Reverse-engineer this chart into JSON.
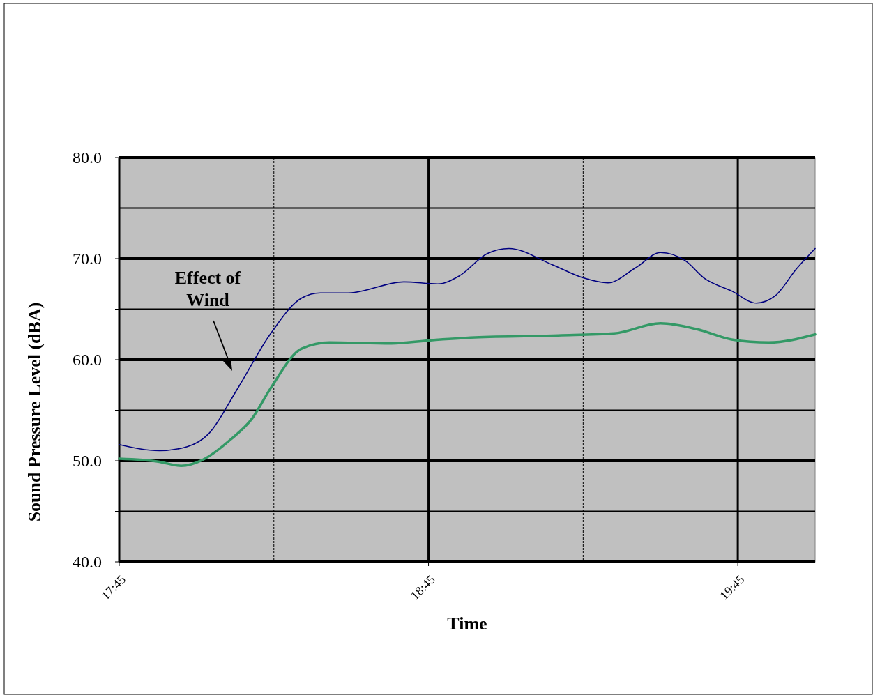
{
  "chart_data": {
    "type": "line",
    "xlabel": "Time",
    "ylabel": "Sound Pressure Level (dBA)",
    "xlim": [
      17.75,
      20.0
    ],
    "xticks": [
      {
        "value": 17.75,
        "label": "17:45"
      },
      {
        "value": 18.25,
        "label": null
      },
      {
        "value": 18.75,
        "label": "18:45"
      },
      {
        "value": 19.25,
        "label": null
      },
      {
        "value": 19.75,
        "label": "19:45"
      }
    ],
    "ylim": [
      40,
      80
    ],
    "yticks": [
      {
        "value": 40,
        "label": "40.0"
      },
      {
        "value": 45,
        "label": null
      },
      {
        "value": 50,
        "label": "50.0"
      },
      {
        "value": 55,
        "label": null
      },
      {
        "value": 60,
        "label": "60.0"
      },
      {
        "value": 65,
        "label": null
      },
      {
        "value": 70,
        "label": "70.0"
      },
      {
        "value": 75,
        "label": null
      },
      {
        "value": 80,
        "label": "80.0"
      }
    ],
    "grid": true,
    "marker": "none",
    "line_style": "solid",
    "annotations": [
      "Effect of Wind"
    ],
    "series": [
      {
        "color": "#000080",
        "x": [
          17.75,
          17.88,
          17.97,
          18.04,
          18.13,
          18.24,
          18.34,
          18.4,
          18.49,
          18.67,
          18.78,
          18.85,
          18.94,
          19.01,
          19.15,
          19.25,
          19.33,
          19.42,
          19.5,
          19.58,
          19.64,
          19.73,
          19.81,
          19.87,
          19.94,
          20.0
        ],
        "values": [
          51.6,
          51.0,
          51.4,
          52.7,
          57.0,
          62.6,
          66.1,
          66.6,
          66.6,
          67.7,
          67.5,
          68.3,
          70.5,
          71.0,
          69.4,
          68.1,
          67.6,
          69.1,
          70.6,
          69.8,
          68.1,
          66.8,
          65.6,
          66.3,
          69.0,
          71.0
        ]
      },
      {
        "color": "#339966",
        "x": [
          17.75,
          17.88,
          17.95,
          18.02,
          18.11,
          18.18,
          18.24,
          18.34,
          18.43,
          18.63,
          18.75,
          18.9,
          19.17,
          19.35,
          19.5,
          19.62,
          19.73,
          19.85,
          20.0
        ],
        "values": [
          50.2,
          49.9,
          49.5,
          50.1,
          52.1,
          54.2,
          57.2,
          61.1,
          61.7,
          61.6,
          61.9,
          62.2,
          62.4,
          62.6,
          63.6,
          63.0,
          62.0,
          61.7,
          62.5
        ]
      }
    ]
  }
}
